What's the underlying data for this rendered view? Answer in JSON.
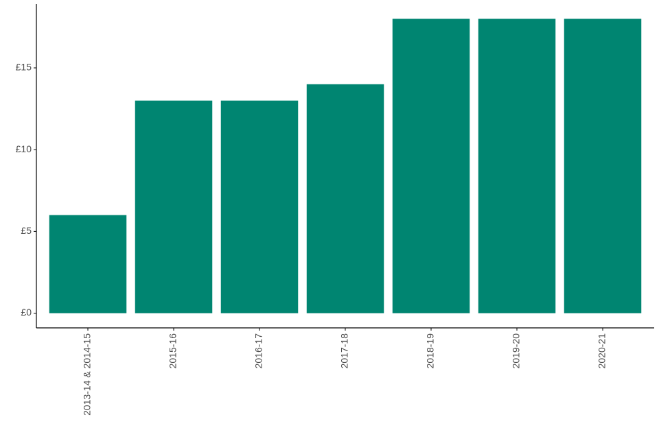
{
  "chart_data": {
    "type": "bar",
    "categories": [
      "2013-14 & 2014-15",
      "2015-16",
      "2016-17",
      "2017-18",
      "2018-19",
      "2019-20",
      "2020-21"
    ],
    "values": [
      6,
      13,
      13,
      14,
      18,
      18,
      18
    ],
    "color": "#008571",
    "ylim": [
      -0.9,
      18.9
    ],
    "yticks": [
      {
        "value": 0,
        "label": "£0"
      },
      {
        "value": 5,
        "label": "£5"
      },
      {
        "value": 10,
        "label": "£10"
      },
      {
        "value": 15,
        "label": "£15"
      }
    ],
    "grid": false
  }
}
